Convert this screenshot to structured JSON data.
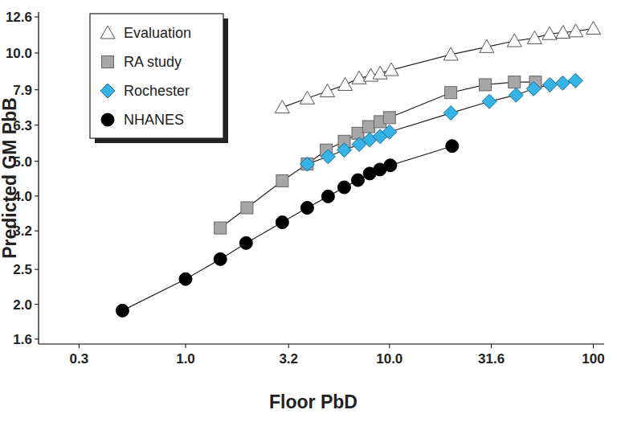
{
  "chart_data": {
    "type": "line",
    "x_label": "Floor PbD",
    "y_label": "Predicted GM PbB",
    "log": true,
    "grid": false,
    "legend": "upper left",
    "xlim": [
      0.19,
      113
    ],
    "xticks": [
      0.3,
      {
        "value": 1,
        "label": "1.0"
      },
      3.2,
      {
        "value": 10,
        "label": "10.0"
      },
      31.6,
      100
    ],
    "ylim": [
      1.55,
      13
    ],
    "yticks": [
      1.6,
      {
        "value": 2,
        "label": "2.0"
      },
      2.5,
      3.2,
      {
        "value": 4,
        "label": "4.0"
      },
      {
        "value": 5,
        "label": "5.0"
      },
      6.3,
      7.9,
      {
        "value": 10,
        "label": "10.0"
      },
      12.6
    ],
    "series": [
      {
        "name": "Evaluation",
        "color": "#ffffff",
        "marker": "triangle",
        "line_style": "solid",
        "x": [
          2.98,
          3.95,
          4.96,
          6.06,
          7.1,
          8.1,
          9.0,
          10.2,
          20,
          30,
          41,
          51.5,
          61,
          71,
          82,
          100
        ],
        "values": [
          7.06,
          7.48,
          7.83,
          8.16,
          8.51,
          8.65,
          8.78,
          8.97,
          9.9,
          10.4,
          10.8,
          11.0,
          11.3,
          11.4,
          11.5,
          11.7
        ]
      },
      {
        "name": "RA study",
        "color": "#a6a6a6",
        "marker": "square",
        "line_style": "solid",
        "x": [
          1.48,
          2.0,
          2.98,
          3.95,
          4.9,
          6.0,
          7.0,
          7.9,
          9.0,
          10,
          20,
          29.5,
          41,
          52
        ],
        "values": [
          3.26,
          3.71,
          4.41,
          4.91,
          5.37,
          5.68,
          5.98,
          6.24,
          6.44,
          6.61,
          7.76,
          8.16,
          8.3,
          8.3
        ]
      },
      {
        "name": "Rochester",
        "color": "#35b3e6",
        "marker": "diamond",
        "line_style": "solid",
        "x": [
          3.95,
          5.0,
          6.0,
          7.1,
          8.0,
          9.0,
          10,
          20,
          30.9,
          41.8,
          51,
          61.2,
          70.8,
          81.8
        ],
        "values": [
          4.91,
          5.15,
          5.37,
          5.57,
          5.74,
          5.86,
          6.03,
          6.81,
          7.33,
          7.64,
          7.96,
          8.16,
          8.25,
          8.38
        ]
      },
      {
        "name": "NHANES",
        "color": "#000000",
        "marker": "circle",
        "line_style": "solid",
        "x": [
          0.49,
          1.0,
          1.48,
          1.98,
          2.98,
          3.95,
          5.0,
          6.0,
          7.0,
          8.0,
          8.97,
          10.1,
          20.3
        ],
        "values": [
          1.92,
          2.35,
          2.67,
          2.96,
          3.38,
          3.71,
          3.99,
          4.23,
          4.43,
          4.62,
          4.74,
          4.87,
          5.51
        ]
      }
    ]
  }
}
